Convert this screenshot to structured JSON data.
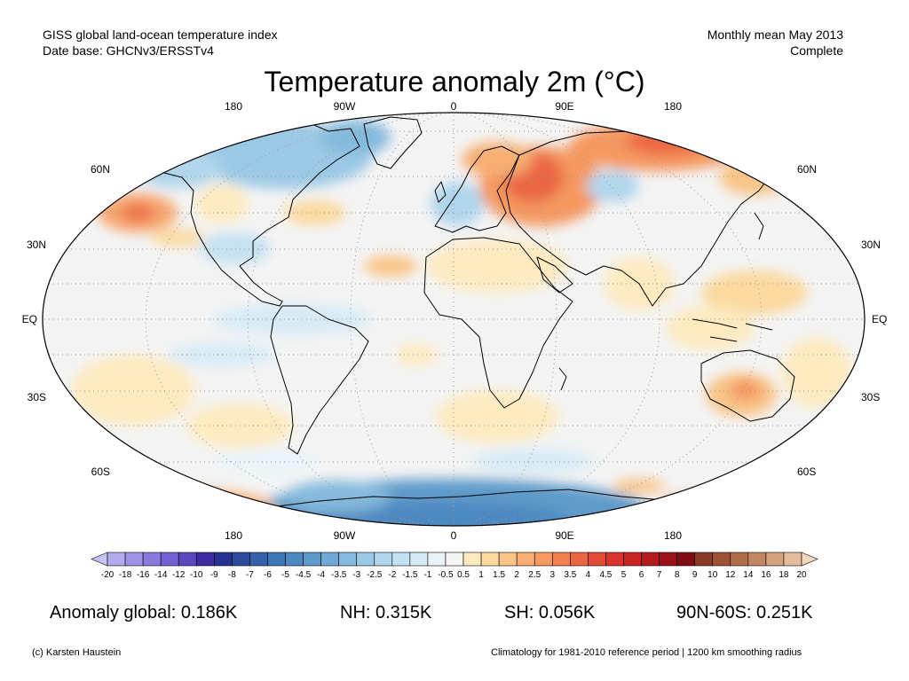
{
  "header": {
    "line1": "GISS global land-ocean temperature index",
    "line2": "Date base: GHCNv3/ERSSTv4",
    "right1": "Monthly mean May 2013",
    "right2": "Complete"
  },
  "title": "Temperature anomaly 2m (°C)",
  "map": {
    "lon_labels_top": [
      "180",
      "90W",
      "0",
      "90E",
      "180"
    ],
    "lon_labels_bottom": [
      "180",
      "90W",
      "0",
      "90E",
      "180"
    ],
    "lat_labels_left": [
      "60N",
      "30N",
      "EQ",
      "30S",
      "60S"
    ],
    "lat_labels_right": [
      "60N",
      "30N",
      "EQ",
      "30S",
      "60S"
    ],
    "projection": "robinson",
    "ocean_color": "#f4f4f4",
    "anomalies": [
      {
        "region": "north-pacific",
        "color": "#f6a66e",
        "level": 2.5
      },
      {
        "region": "western-russia",
        "color": "#ee6f47",
        "level": 4
      },
      {
        "region": "north-siberia",
        "color": "#f08860",
        "level": 3.5
      },
      {
        "region": "canada-greenland",
        "color": "#9ccae6",
        "level": -1
      },
      {
        "region": "antarctica",
        "color": "#5f93c8",
        "level": -3
      },
      {
        "region": "south-pacific",
        "color": "#fbd9a0",
        "level": 1
      },
      {
        "region": "australia",
        "color": "#f7b27c",
        "level": 2
      },
      {
        "region": "south-atlantic-polar",
        "color": "#f7a570",
        "level": 2
      }
    ]
  },
  "colorbar": {
    "labels": [
      "-20",
      "-18",
      "-16",
      "-14",
      "-12",
      "-10",
      "-9",
      "-8",
      "-7",
      "-6",
      "-5",
      "-4.5",
      "-4",
      "-3.5",
      "-3",
      "-2.5",
      "-2",
      "-1.5",
      "-1",
      "-0.5",
      "0.5",
      "1",
      "1.5",
      "2",
      "2.5",
      "3",
      "3.5",
      "4",
      "4.5",
      "5",
      "6",
      "7",
      "8",
      "9",
      "10",
      "12",
      "14",
      "16",
      "18",
      "20"
    ],
    "colors": [
      "#c4c4f4",
      "#b2acee",
      "#9e92e6",
      "#8a79de",
      "#7460d1",
      "#5b47bd",
      "#3e2ba2",
      "#273191",
      "#2d4a9d",
      "#3561ab",
      "#3e76b6",
      "#4d89c1",
      "#5e9bcb",
      "#70aad4",
      "#84badd",
      "#9bc9e5",
      "#b0d5ec",
      "#c4e1f2",
      "#d7ebf6",
      "#e9f4f9",
      "#f5f5f5",
      "#fdeabf",
      "#fbd99f",
      "#f9c487",
      "#f7ae72",
      "#f59861",
      "#f17f50",
      "#eb6642",
      "#e24c36",
      "#d8342c",
      "#c92424",
      "#b51a1f",
      "#9b1319",
      "#800d13",
      "#8b3a28",
      "#9e5337",
      "#b06d4a",
      "#c28762",
      "#d3a27e",
      "#e3bd9c",
      "#f0d7bf"
    ]
  },
  "stats": {
    "global": "Anomaly global: 0.186K",
    "nh": "NH: 0.315K",
    "sh": "SH: 0.056K",
    "band": "90N-60S: 0.251K"
  },
  "footer": {
    "left": "(c) Karsten Haustein",
    "right": "Climatology for 1981-2010 reference period | 1200 km smoothing radius"
  }
}
